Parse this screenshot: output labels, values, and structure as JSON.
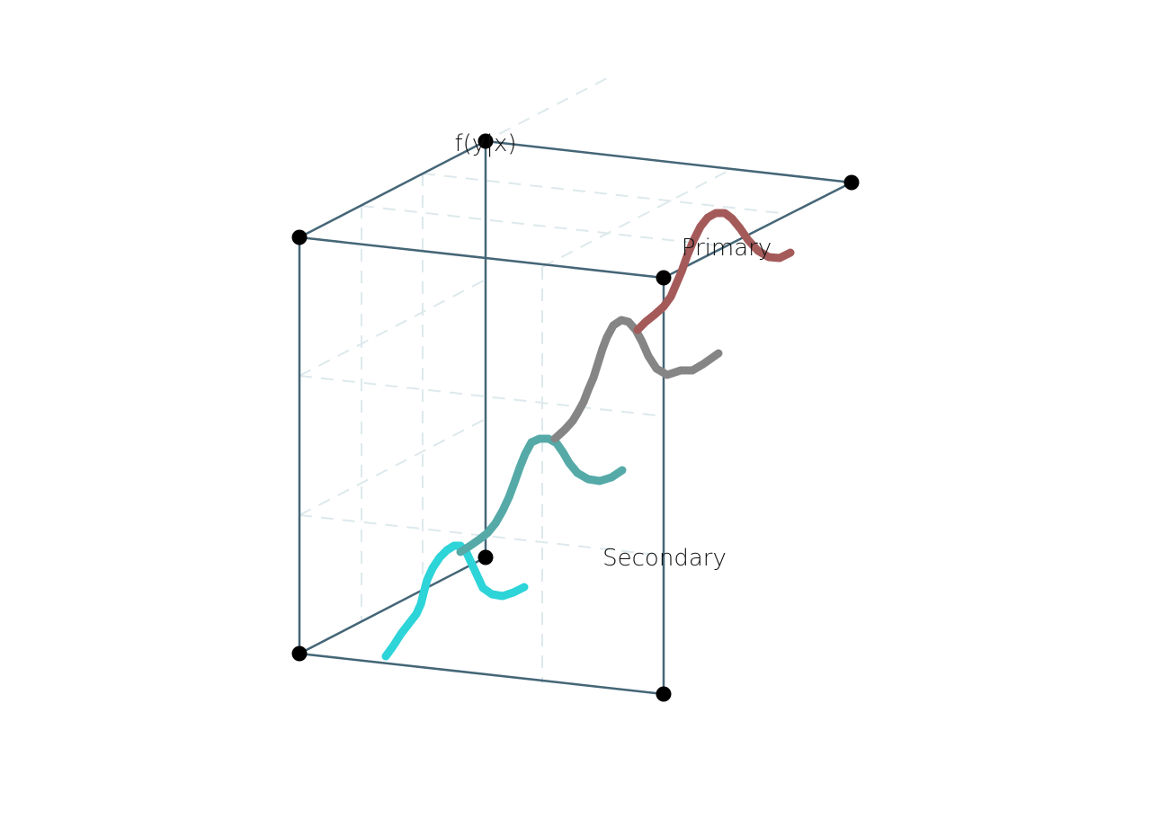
{
  "chart_data": {
    "type": "line",
    "projection": "3d",
    "title": "",
    "axis_labels": {
      "z": "f(y|x)",
      "x": "Secondary",
      "y": "Primary"
    },
    "grid": true,
    "series": [
      {
        "name": "",
        "color": "#2dd4d8",
        "values": [
          [
            429,
            730
          ],
          [
            437,
            719
          ],
          [
            446,
            705
          ],
          [
            456,
            692
          ],
          [
            463,
            683
          ],
          [
            468,
            672
          ],
          [
            471,
            660
          ],
          [
            475,
            645
          ],
          [
            481,
            632
          ],
          [
            489,
            620
          ],
          [
            497,
            612
          ],
          [
            505,
            607
          ],
          [
            512,
            607
          ],
          [
            519,
            615
          ],
          [
            525,
            628
          ],
          [
            531,
            641
          ],
          [
            537,
            654
          ],
          [
            547,
            661
          ],
          [
            559,
            663
          ],
          [
            571,
            659
          ],
          [
            583,
            653
          ]
        ]
      },
      {
        "name": "",
        "color": "#55aaa8",
        "values": [
          [
            512,
            614
          ],
          [
            523,
            607
          ],
          [
            533,
            600
          ],
          [
            542,
            593
          ],
          [
            551,
            582
          ],
          [
            559,
            568
          ],
          [
            566,
            553
          ],
          [
            572,
            537
          ],
          [
            578,
            520
          ],
          [
            584,
            505
          ],
          [
            591,
            492
          ],
          [
            600,
            488
          ],
          [
            610,
            488
          ],
          [
            619,
            493
          ],
          [
            626,
            503
          ],
          [
            633,
            515
          ],
          [
            642,
            526
          ],
          [
            654,
            533
          ],
          [
            667,
            535
          ],
          [
            680,
            531
          ],
          [
            692,
            523
          ]
        ]
      },
      {
        "name": "",
        "color": "#858585",
        "values": [
          [
            617,
            488
          ],
          [
            628,
            478
          ],
          [
            637,
            468
          ],
          [
            643,
            458
          ],
          [
            649,
            447
          ],
          [
            654,
            434
          ],
          [
            660,
            420
          ],
          [
            665,
            404
          ],
          [
            670,
            388
          ],
          [
            675,
            375
          ],
          [
            682,
            362
          ],
          [
            691,
            356
          ],
          [
            699,
            358
          ],
          [
            707,
            367
          ],
          [
            714,
            380
          ],
          [
            721,
            396
          ],
          [
            730,
            410
          ],
          [
            742,
            417
          ],
          [
            757,
            412
          ],
          [
            770,
            412
          ],
          [
            782,
            405
          ],
          [
            799,
            393
          ]
        ]
      },
      {
        "name": "",
        "color": "#a55a5a",
        "values": [
          [
            709,
            367
          ],
          [
            718,
            358
          ],
          [
            728,
            350
          ],
          [
            738,
            341
          ],
          [
            746,
            330
          ],
          [
            752,
            316
          ],
          [
            758,
            302
          ],
          [
            764,
            285
          ],
          [
            771,
            268
          ],
          [
            779,
            252
          ],
          [
            787,
            242
          ],
          [
            796,
            237
          ],
          [
            806,
            237
          ],
          [
            814,
            243
          ],
          [
            823,
            254
          ],
          [
            832,
            267
          ],
          [
            843,
            279
          ],
          [
            855,
            286
          ],
          [
            867,
            287
          ],
          [
            879,
            281
          ]
        ]
      }
    ]
  }
}
